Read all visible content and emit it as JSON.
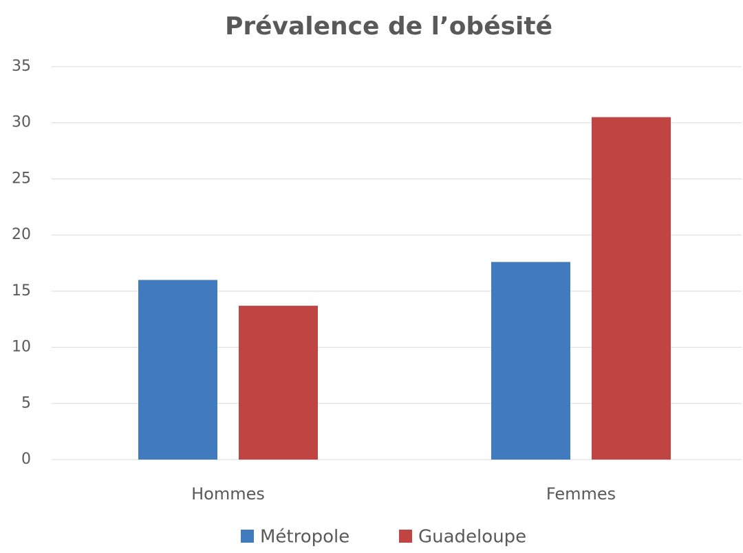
{
  "chart_data": {
    "type": "bar",
    "title": "Prévalence de l’obésité",
    "categories": [
      "Hommes",
      "Femmes"
    ],
    "series": [
      {
        "name": "Métropole",
        "color": "#427bbd",
        "values": [
          16.0,
          17.6
        ]
      },
      {
        "name": "Guadeloupe",
        "color": "#bf4442",
        "values": [
          13.7,
          30.5
        ]
      }
    ],
    "ylim": [
      0,
      35
    ],
    "yticks": [
      0,
      5,
      10,
      15,
      20,
      25,
      30,
      35
    ],
    "grid": true,
    "legend": "bottom"
  }
}
